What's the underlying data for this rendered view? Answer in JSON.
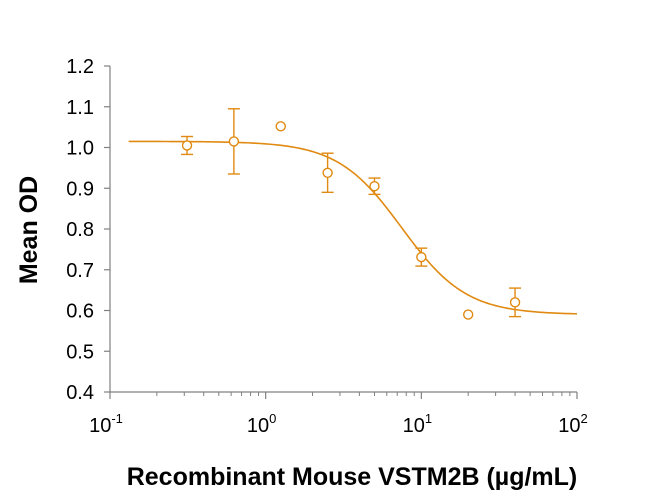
{
  "chart_data": {
    "type": "scatter",
    "xlabel": "Recombinant Mouse VSTM2B (µg/mL)",
    "ylabel": "Mean OD",
    "xscale": "log",
    "xlim": [
      0.1,
      100
    ],
    "ylim": [
      0.4,
      1.2
    ],
    "grid": false,
    "legend": "none",
    "color": "#E08A12",
    "x_ticks": [
      {
        "base": "10",
        "exp": "-1"
      },
      {
        "base": "10",
        "exp": "0"
      },
      {
        "base": "10",
        "exp": "1"
      },
      {
        "base": "10",
        "exp": "2"
      }
    ],
    "y_ticks": [
      "0.4",
      "0.5",
      "0.6",
      "0.7",
      "0.8",
      "0.9",
      "1.0",
      "1.1",
      "1.2"
    ],
    "series": [
      {
        "points": [
          {
            "x": 0.3125,
            "y": 1.005,
            "err": 0.022
          },
          {
            "x": 0.625,
            "y": 1.015,
            "err": 0.08
          },
          {
            "x": 1.25,
            "y": 1.052,
            "err": 0
          },
          {
            "x": 2.5,
            "y": 0.938,
            "err": 0.048
          },
          {
            "x": 5,
            "y": 0.905,
            "err": 0.02
          },
          {
            "x": 10,
            "y": 0.731,
            "err": 0.022
          },
          {
            "x": 20,
            "y": 0.59,
            "err": 0
          },
          {
            "x": 40,
            "y": 0.62,
            "err": 0.035
          }
        ],
        "fit": {
          "type": "4PL",
          "top": 1.015,
          "bottom": 0.59,
          "ec50": 7.5,
          "hill": 2.1,
          "x_range": [
            0.1,
            100
          ]
        }
      }
    ]
  }
}
